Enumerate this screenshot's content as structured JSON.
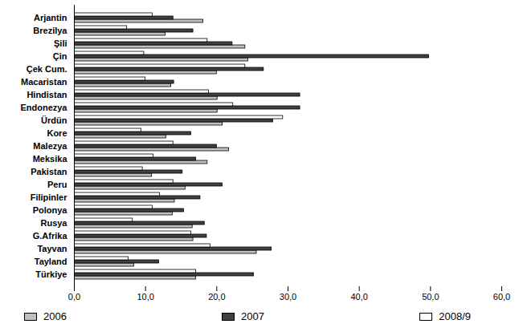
{
  "chart_data": {
    "type": "bar",
    "orientation": "horizontal",
    "grid": false,
    "legend": "bottom",
    "categories": [
      "Arjantin",
      "Brezilya",
      "Şili",
      "Çin",
      "Çek Cum.",
      "Macaristan",
      "Hindistan",
      "Endonezya",
      "Ürdün",
      "Kore",
      "Malezya",
      "Meksika",
      "Pakistan",
      "Peru",
      "Filipinler",
      "Polonya",
      "Rusya",
      "G.Afrika",
      "Tayvan",
      "Tayland",
      "Türkiye"
    ],
    "series": [
      {
        "name": "2006",
        "color": "#c0c0c0",
        "values": [
          18.1,
          12.8,
          24.0,
          24.4,
          20.0,
          13.6,
          20.1,
          20.1,
          20.8,
          12.9,
          21.7,
          18.7,
          10.9,
          15.6,
          14.1,
          13.8,
          16.6,
          16.7,
          25.6,
          8.4,
          17.1
        ]
      },
      {
        "name": "2007",
        "color": "#404040",
        "values": [
          13.9,
          16.7,
          22.2,
          49.8,
          26.6,
          14.0,
          31.7,
          31.7,
          27.9,
          16.4,
          20.0,
          17.1,
          15.2,
          20.8,
          17.7,
          15.4,
          18.3,
          18.6,
          27.7,
          11.9,
          25.2
        ]
      },
      {
        "name": "2008/9",
        "color": "#ffffff",
        "values": [
          11.0,
          7.4,
          18.7,
          9.8,
          24.0,
          10.0,
          18.9,
          22.3,
          29.3,
          9.4,
          13.9,
          11.1,
          9.6,
          13.9,
          12.0,
          11.0,
          8.2,
          16.4,
          19.1,
          7.6,
          17.1
        ]
      }
    ],
    "xlim": [
      0,
      60
    ],
    "xticks": [
      {
        "value": 0,
        "label": "0,0"
      },
      {
        "value": 10,
        "label": "10,0"
      },
      {
        "value": 20,
        "label": "20,0"
      },
      {
        "value": 30,
        "label": "30,0"
      },
      {
        "value": 40,
        "label": "40,0"
      },
      {
        "value": 50,
        "label": "50,0"
      },
      {
        "value": 60,
        "label": "60,0"
      }
    ]
  }
}
